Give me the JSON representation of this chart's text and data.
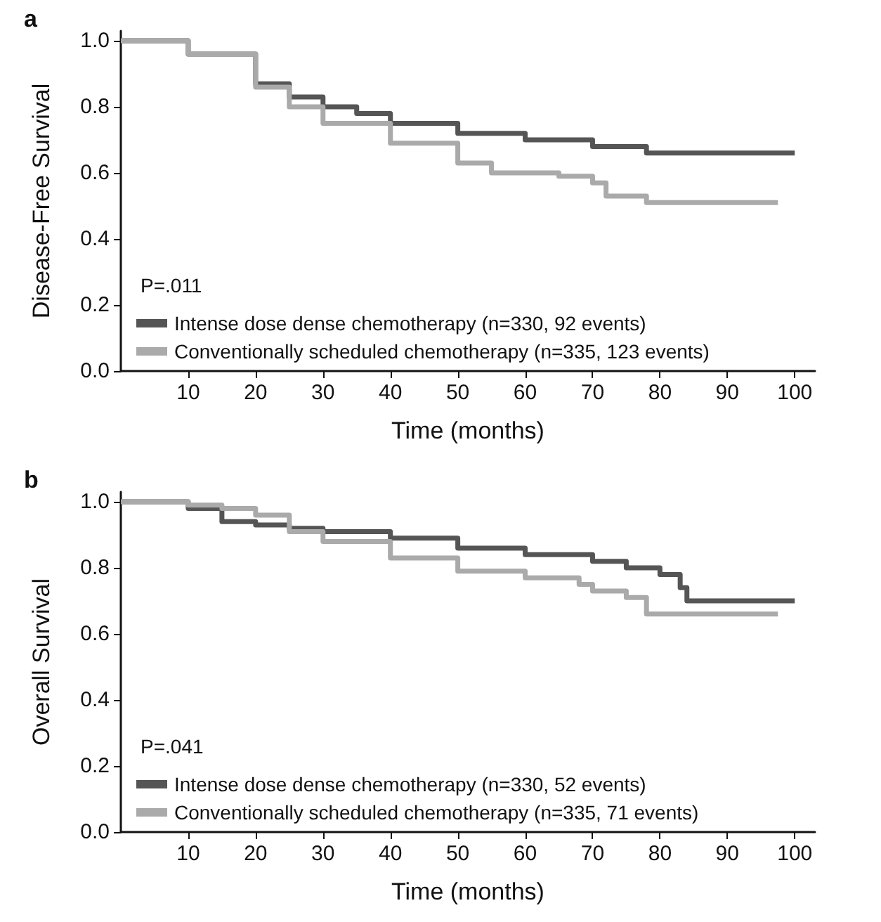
{
  "chart_data": [
    {
      "type": "step",
      "title": "a",
      "xlabel": "Time (months)",
      "ylabel": "Disease-Free Survival",
      "annotations": [
        "P=.011"
      ],
      "xlim": [
        0,
        103
      ],
      "xticks": [
        10,
        20,
        30,
        40,
        50,
        60,
        70,
        80,
        90,
        100
      ],
      "ylim": [
        0,
        1.03
      ],
      "yticks": [
        {
          "value": 0,
          "label": "0.0"
        },
        {
          "value": 0.2,
          "label": "0.2"
        },
        {
          "value": 0.4,
          "label": "0.4"
        },
        {
          "value": 0.6,
          "label": "0.6"
        },
        {
          "value": 0.8,
          "label": "0.8"
        },
        {
          "value": 1,
          "label": "1.0"
        }
      ],
      "grid": false,
      "legend": "bottom left",
      "marker": "none",
      "line_style": "solid",
      "series": [
        {
          "name": "Intense dose dense chemotherapy (n=330, 92 events)",
          "color": "#555555",
          "x": [
            0,
            10,
            20,
            25,
            30,
            35,
            40,
            50,
            60,
            70,
            78,
            100
          ],
          "values": [
            1.0,
            0.96,
            0.87,
            0.83,
            0.8,
            0.78,
            0.75,
            0.72,
            0.7,
            0.68,
            0.66,
            0.66
          ]
        },
        {
          "name": "Conventionally scheduled chemotherapy (n=335, 123 events)",
          "color": "#aaaaaa",
          "x": [
            0,
            10,
            20,
            25,
            30,
            40,
            50,
            55,
            65,
            70,
            72,
            78,
            97.5
          ],
          "values": [
            1.0,
            0.96,
            0.86,
            0.8,
            0.75,
            0.69,
            0.63,
            0.6,
            0.59,
            0.57,
            0.53,
            0.51,
            0.51
          ]
        }
      ]
    },
    {
      "type": "step",
      "title": "b",
      "xlabel": "Time (months)",
      "ylabel": "Overall Survival",
      "annotations": [
        "P=.041"
      ],
      "xlim": [
        0,
        103
      ],
      "xticks": [
        10,
        20,
        30,
        40,
        50,
        60,
        70,
        80,
        90,
        100
      ],
      "ylim": [
        0,
        1.03
      ],
      "yticks": [
        {
          "value": 0,
          "label": "0.0"
        },
        {
          "value": 0.2,
          "label": "0.2"
        },
        {
          "value": 0.4,
          "label": "0.4"
        },
        {
          "value": 0.6,
          "label": "0.6"
        },
        {
          "value": 0.8,
          "label": "0.8"
        },
        {
          "value": 1,
          "label": "1.0"
        }
      ],
      "grid": false,
      "legend": "bottom left",
      "marker": "none",
      "line_style": "solid",
      "series": [
        {
          "name": "Intense dose dense chemotherapy (n=330, 52 events)",
          "color": "#555555",
          "x": [
            0,
            10,
            15,
            20,
            25,
            30,
            40,
            50,
            60,
            70,
            75,
            80,
            83,
            84,
            100
          ],
          "values": [
            1.0,
            0.98,
            0.94,
            0.93,
            0.92,
            0.91,
            0.89,
            0.86,
            0.84,
            0.82,
            0.8,
            0.78,
            0.74,
            0.7,
            0.7
          ]
        },
        {
          "name": "Conventionally scheduled chemotherapy (n=335, 71 events)",
          "color": "#aaaaaa",
          "x": [
            0,
            10,
            15,
            20,
            25,
            30,
            40,
            50,
            60,
            68,
            70,
            75,
            78,
            97.5
          ],
          "values": [
            1.0,
            0.99,
            0.98,
            0.96,
            0.91,
            0.88,
            0.83,
            0.79,
            0.77,
            0.75,
            0.73,
            0.71,
            0.66,
            0.66
          ]
        }
      ]
    }
  ]
}
